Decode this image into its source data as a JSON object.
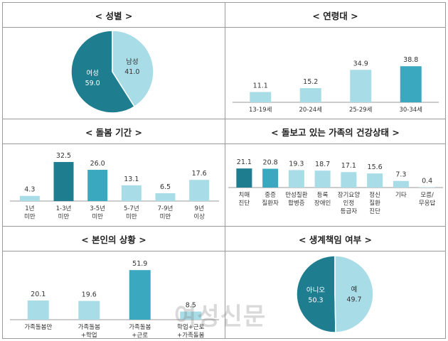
{
  "colors": {
    "light": "#a8dce7",
    "mid": "#3aa9c0",
    "dark": "#1f7d90",
    "axis": "#9a9a9a",
    "text": "#333333"
  },
  "watermark": "여성신문",
  "chart_data": [
    {
      "id": "gender",
      "type": "pie",
      "title": "< 성별 >",
      "slices": [
        {
          "label": "여성",
          "value": 59.0,
          "display": "59.0"
        },
        {
          "label": "남성",
          "value": 41.0,
          "display": "41.0"
        }
      ]
    },
    {
      "id": "age",
      "type": "bar",
      "title": "< 연령대 >",
      "categories": [
        [
          "13-19세"
        ],
        [
          "20-24세"
        ],
        [
          "25-29세"
        ],
        [
          "30-34세"
        ]
      ],
      "values": [
        11.1,
        15.2,
        34.9,
        38.8
      ],
      "labels": [
        "11.1",
        "15.2",
        "34.9",
        "38.8"
      ],
      "highlight": [
        3
      ]
    },
    {
      "id": "period",
      "type": "bar",
      "title": "< 돌봄 기간 >",
      "categories": [
        [
          "1년",
          "미만"
        ],
        [
          "1-3년",
          "미만"
        ],
        [
          "3-5년",
          "미만"
        ],
        [
          "5-7년",
          "미만"
        ],
        [
          "7-9년",
          "미만"
        ],
        [
          "9년",
          "이상"
        ]
      ],
      "values": [
        4.3,
        32.5,
        26.0,
        13.1,
        6.5,
        17.6
      ],
      "labels": [
        "4.3",
        "32.5",
        "26.0",
        "13.1",
        "6.5",
        "17.6"
      ],
      "highlight": [
        1,
        2
      ]
    },
    {
      "id": "health",
      "type": "bar",
      "title": "< 돌보고 있는 가족의 건강상태 >",
      "categories": [
        [
          "치매",
          "진단"
        ],
        [
          "중증",
          "질환자"
        ],
        [
          "만성질환",
          "합병증"
        ],
        [
          "등록",
          "장애인"
        ],
        [
          "장기요양",
          "인정",
          "등급자"
        ],
        [
          "정신",
          "질환",
          "진단"
        ],
        [
          "기타"
        ],
        [
          "모름/",
          "무응답"
        ]
      ],
      "values": [
        21.1,
        20.8,
        19.3,
        18.7,
        17.1,
        15.6,
        7.3,
        0.4
      ],
      "labels": [
        "21.1",
        "20.8",
        "19.3",
        "18.7",
        "17.1",
        "15.6",
        "7.3",
        "0.4"
      ],
      "highlight": [
        0,
        1
      ]
    },
    {
      "id": "situation",
      "type": "bar",
      "title": "< 본인의 상황 >",
      "categories": [
        [
          "가족돌봄만"
        ],
        [
          "가족돌봄",
          "+학업"
        ],
        [
          "가족돌봄",
          "+근로"
        ],
        [
          "학업+근로",
          "+가족돌봄"
        ]
      ],
      "values": [
        20.1,
        19.6,
        51.9,
        8.5
      ],
      "labels": [
        "20.1",
        "19.6",
        "51.9",
        "8.5"
      ],
      "highlight": [
        2
      ]
    },
    {
      "id": "breadwinner",
      "type": "pie",
      "title": "< 생계책임 여부 >",
      "slices": [
        {
          "label": "아니오",
          "value": 50.3,
          "display": "50.3"
        },
        {
          "label": "예",
          "value": 49.7,
          "display": "49.7"
        }
      ]
    }
  ]
}
